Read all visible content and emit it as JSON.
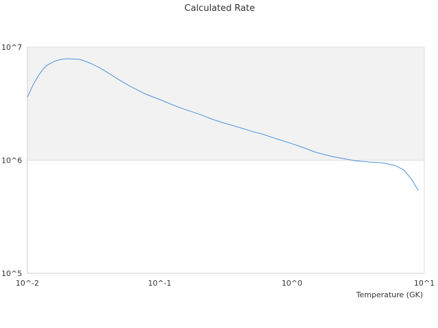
{
  "chart_data": {
    "type": "line",
    "title": "Calculated Rate",
    "xlabel": "Temperature (GK)",
    "ylabel": "",
    "x_scale": "log",
    "y_scale": "log",
    "xlim": [
      0.01,
      10
    ],
    "ylim": [
      100000,
      10000000
    ],
    "x_ticks": [
      {
        "value": 0.01,
        "label": "10^-2"
      },
      {
        "value": 0.1,
        "label": "10^-1"
      },
      {
        "value": 1,
        "label": "10^0"
      },
      {
        "value": 10,
        "label": "10^1"
      }
    ],
    "y_ticks": [
      {
        "value": 100000,
        "label": "10^5"
      },
      {
        "value": 1000000,
        "label": "10^6"
      },
      {
        "value": 10000000,
        "label": "10^7"
      }
    ],
    "grid": false,
    "legend": "none",
    "shaded_band": {
      "from": 1000000,
      "to": 10000000,
      "color": "#f2f2f2"
    },
    "colors": {
      "line": "#4a90d9",
      "axis": "#cccccc",
      "gridline": "#dddddd"
    },
    "series": [
      {
        "values": [
          [
            0.01,
            3600000
          ],
          [
            0.011,
            4600000
          ],
          [
            0.012,
            5500000
          ],
          [
            0.013,
            6300000
          ],
          [
            0.014,
            6900000
          ],
          [
            0.016,
            7500000
          ],
          [
            0.018,
            7800000
          ],
          [
            0.02,
            7900000
          ],
          [
            0.025,
            7800000
          ],
          [
            0.03,
            7200000
          ],
          [
            0.035,
            6600000
          ],
          [
            0.04,
            6000000
          ],
          [
            0.05,
            5100000
          ],
          [
            0.06,
            4500000
          ],
          [
            0.07,
            4100000
          ],
          [
            0.08,
            3800000
          ],
          [
            0.1,
            3450000
          ],
          [
            0.12,
            3150000
          ],
          [
            0.15,
            2850000
          ],
          [
            0.2,
            2550000
          ],
          [
            0.25,
            2300000
          ],
          [
            0.3,
            2150000
          ],
          [
            0.4,
            1950000
          ],
          [
            0.5,
            1800000
          ],
          [
            0.6,
            1700000
          ],
          [
            0.7,
            1600000
          ],
          [
            0.8,
            1520000
          ],
          [
            1.0,
            1400000
          ],
          [
            1.2,
            1300000
          ],
          [
            1.5,
            1180000
          ],
          [
            2.0,
            1080000
          ],
          [
            2.5,
            1030000
          ],
          [
            3.0,
            990000
          ],
          [
            4.0,
            960000
          ],
          [
            4.5,
            955000
          ],
          [
            5.0,
            940000
          ],
          [
            6.0,
            900000
          ],
          [
            7.0,
            820000
          ],
          [
            8.0,
            680000
          ],
          [
            9.0,
            540000
          ]
        ]
      }
    ]
  }
}
